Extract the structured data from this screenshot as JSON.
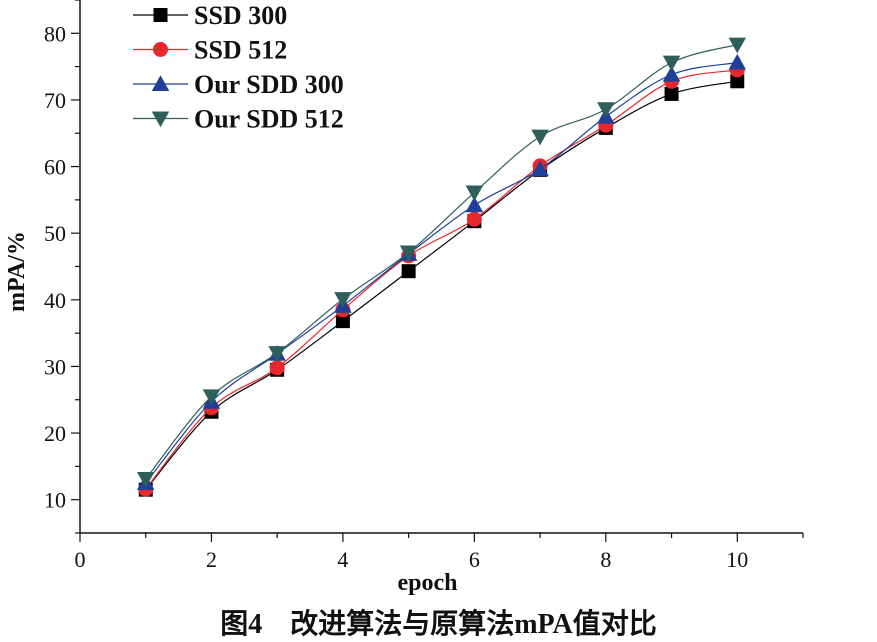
{
  "chart_data": {
    "type": "line",
    "title": "",
    "xlabel": "epoch",
    "ylabel": "mPA/%",
    "xlim": [
      0,
      11
    ],
    "ylim": [
      5,
      85
    ],
    "x_ticks": [
      0,
      2,
      4,
      6,
      8,
      10
    ],
    "y_ticks": [
      10,
      20,
      30,
      40,
      50,
      60,
      70,
      80
    ],
    "x": [
      1,
      2,
      3,
      4,
      5,
      6,
      7,
      8,
      9,
      10
    ],
    "legend_position": "top-left",
    "series": [
      {
        "name": "SSD 300",
        "marker": "square",
        "color": "#000000",
        "values": [
          11.5,
          23.2,
          29.5,
          36.8,
          44.3,
          51.8,
          59.5,
          65.8,
          70.9,
          72.8
        ]
      },
      {
        "name": "SSD 512",
        "marker": "circle",
        "color": "#e8262b",
        "values": [
          11.6,
          23.8,
          29.8,
          38.5,
          46.6,
          52.1,
          60.1,
          66.2,
          72.8,
          74.5
        ]
      },
      {
        "name": "Our SDD 300",
        "marker": "triangle-up",
        "color": "#1f3f99",
        "values": [
          12.5,
          24.7,
          31.9,
          39.1,
          46.9,
          54.2,
          59.6,
          67.5,
          73.8,
          75.6
        ]
      },
      {
        "name": "Our SDD 512",
        "marker": "triangle-down",
        "color": "#2f5f5b",
        "values": [
          13.1,
          25.5,
          32.0,
          40.1,
          47.1,
          56.1,
          64.5,
          68.6,
          75.6,
          78.3
        ]
      }
    ]
  },
  "caption": "图4　改进算法与原算法mPA值对比"
}
